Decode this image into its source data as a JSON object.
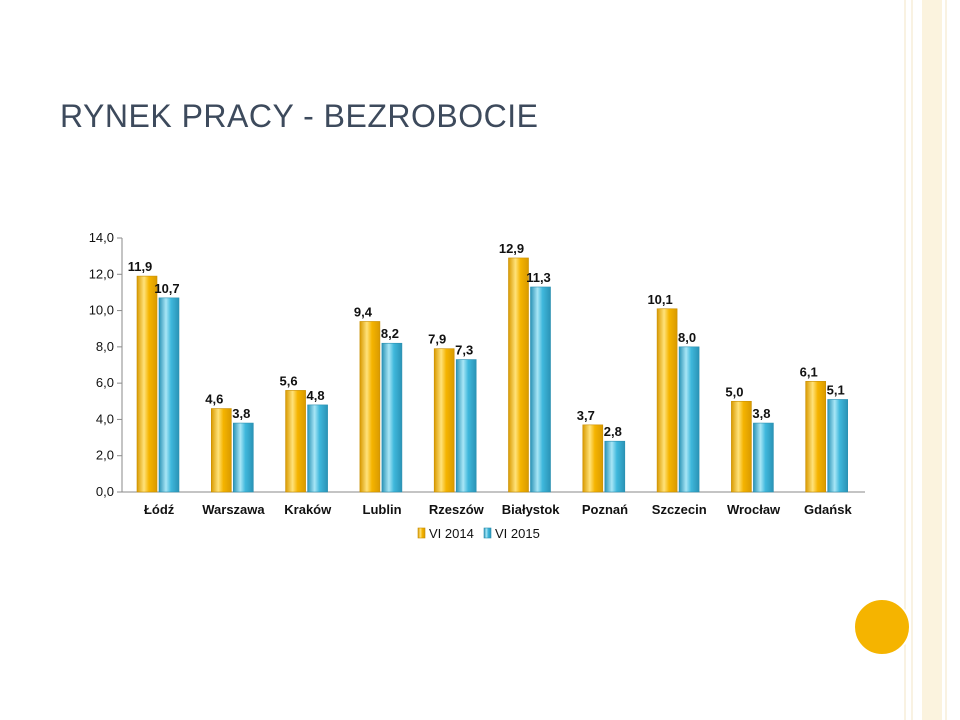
{
  "slide": {
    "title": "RYNEK PRACY - BEZROBOCIE"
  },
  "colors": {
    "series_2014": "#f5b400",
    "series_2015": "#3fb8dc",
    "title": "#3d4a5c",
    "accent_circle": "#f5b400"
  },
  "chart_data": {
    "type": "bar",
    "categories": [
      "Łódź",
      "Warszawa",
      "Kraków",
      "Lublin",
      "Rzeszów",
      "Białystok",
      "Poznań",
      "Szczecin",
      "Wrocław",
      "Gdańsk"
    ],
    "series": [
      {
        "name": "VI 2014",
        "values": [
          11.9,
          4.6,
          5.6,
          9.4,
          7.9,
          12.9,
          3.7,
          10.1,
          5.0,
          6.1
        ],
        "labels": [
          "11,9",
          "4,6",
          "5,6",
          "9,4",
          "7,9",
          "12,9",
          "3,7",
          "10,1",
          "5,0",
          "6,1"
        ]
      },
      {
        "name": "VI 2015",
        "values": [
          10.7,
          3.8,
          4.8,
          8.2,
          7.3,
          11.3,
          2.8,
          8.0,
          3.8,
          5.1
        ],
        "labels": [
          "10,7",
          "3,8",
          "4,8",
          "8,2",
          "7,3",
          "11,3",
          "2,8",
          "8,0",
          "3,8",
          "5,1"
        ]
      }
    ],
    "y_ticks": [
      "0,0",
      "2,0",
      "4,0",
      "6,0",
      "8,0",
      "10,0",
      "12,0",
      "14,0"
    ],
    "ylim": [
      0,
      14
    ],
    "legend_position": "bottom",
    "grid": false
  }
}
